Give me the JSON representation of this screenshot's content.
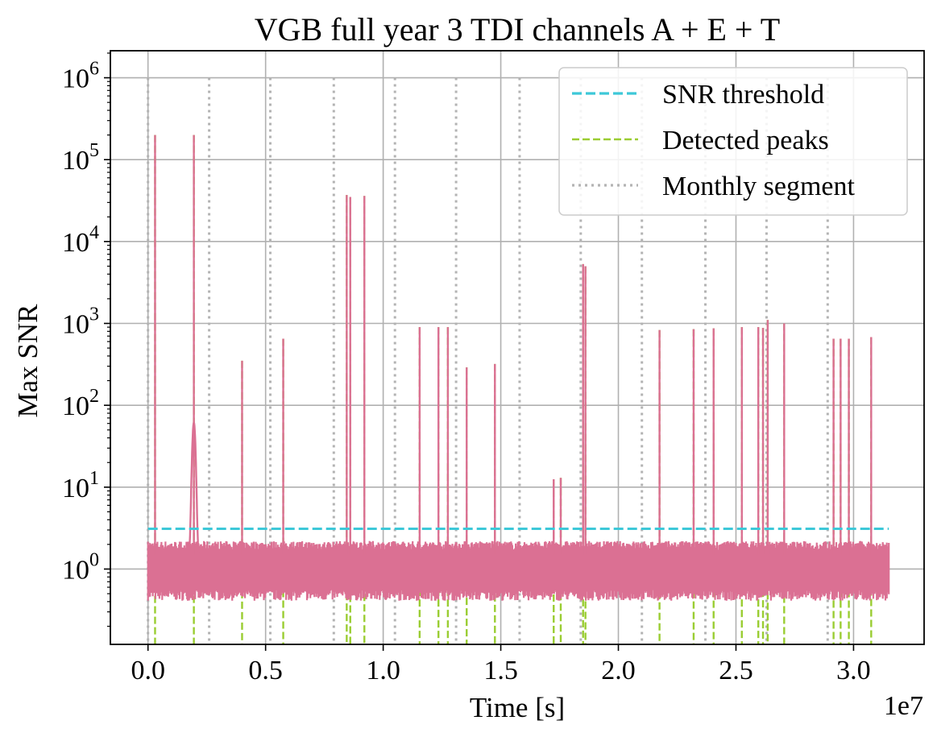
{
  "chart_data": {
    "type": "line",
    "title": "VGB full year 3 TDI channels A + E + T",
    "xlabel": "Time [s]",
    "ylabel": "Max SNR",
    "x_offset_label": "1e7",
    "xlim": [
      -0.16,
      3.3
    ],
    "ylog_range": [
      -0.92,
      6.33
    ],
    "x_ticks": [
      0.0,
      0.5,
      1.0,
      1.5,
      2.0,
      2.5,
      3.0
    ],
    "x_tick_labels": [
      "0.0",
      "0.5",
      "1.0",
      "1.5",
      "2.0",
      "2.5",
      "3.0"
    ],
    "y_tick_exponents": [
      0,
      1,
      2,
      3,
      4,
      5,
      6
    ],
    "y_tick_base": "10",
    "grid": true,
    "legend_position": "top-right",
    "legend": [
      {
        "label": "SNR threshold",
        "style": "dashed",
        "color": "#3dc8d8"
      },
      {
        "label": "Detected peaks",
        "style": "dashed",
        "color": "#9acd32"
      },
      {
        "label": "Monthly segment",
        "style": "dotted",
        "color": "#b3b3b3"
      }
    ],
    "series": [
      {
        "name": "Max SNR",
        "color": "#db7093",
        "baseline_range": [
          0.5,
          2.0
        ],
        "x_end": 3.15
      },
      {
        "name": "SNR threshold",
        "color": "#3dc8d8",
        "value": 3.1,
        "x_range": [
          0.0,
          3.15
        ]
      }
    ],
    "monthly_segments": [
      0.0,
      0.26,
      0.52,
      0.79,
      1.05,
      1.31,
      1.58,
      1.84,
      2.1,
      2.37,
      2.63,
      2.89
    ],
    "detected_peaks": [
      {
        "x": 0.03,
        "snr": 200000
      },
      {
        "x": 0.195,
        "snr": 200000
      },
      {
        "x": 0.4,
        "snr": 350
      },
      {
        "x": 0.575,
        "snr": 650
      },
      {
        "x": 0.845,
        "snr": 37000
      },
      {
        "x": 0.86,
        "snr": 35000
      },
      {
        "x": 0.92,
        "snr": 36000
      },
      {
        "x": 1.155,
        "snr": 900
      },
      {
        "x": 1.235,
        "snr": 900
      },
      {
        "x": 1.275,
        "snr": 900
      },
      {
        "x": 1.355,
        "snr": 290
      },
      {
        "x": 1.475,
        "snr": 320
      },
      {
        "x": 1.725,
        "snr": 12.5
      },
      {
        "x": 1.755,
        "snr": 13
      },
      {
        "x": 1.85,
        "snr": 5300
      },
      {
        "x": 1.86,
        "snr": 5000
      },
      {
        "x": 2.175,
        "snr": 830
      },
      {
        "x": 2.32,
        "snr": 850
      },
      {
        "x": 2.405,
        "snr": 870
      },
      {
        "x": 2.525,
        "snr": 900
      },
      {
        "x": 2.595,
        "snr": 900
      },
      {
        "x": 2.615,
        "snr": 880
      },
      {
        "x": 2.635,
        "snr": 1100
      },
      {
        "x": 2.705,
        "snr": 1000
      },
      {
        "x": 2.915,
        "snr": 650
      },
      {
        "x": 2.945,
        "snr": 650
      },
      {
        "x": 2.98,
        "snr": 650
      },
      {
        "x": 3.075,
        "snr": 680
      }
    ]
  }
}
